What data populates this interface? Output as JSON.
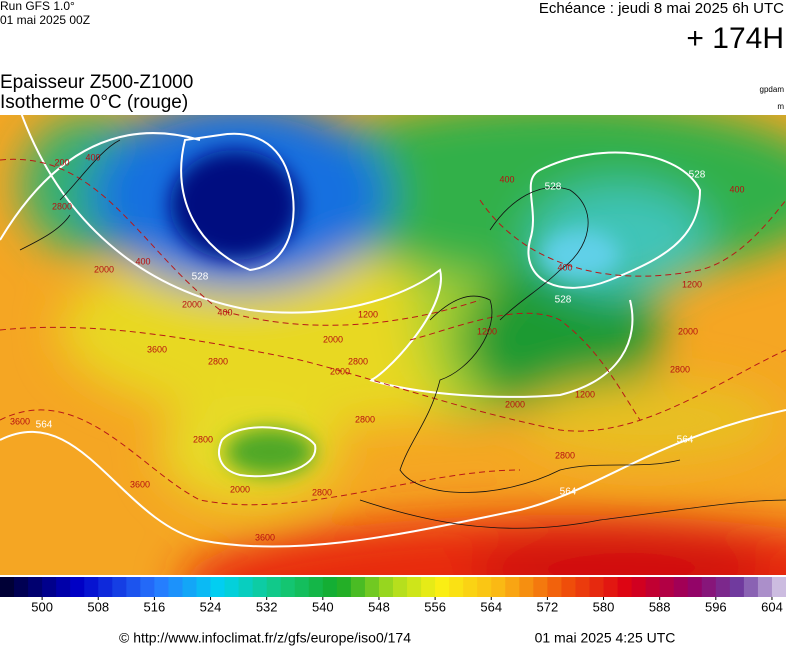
{
  "header": {
    "run": "Run GFS 1.0°",
    "run_date": "01 mai 2025 00Z",
    "echeance": "Echéance : jeudi 8 mai 2025 6h UTC",
    "lead": "+ 174H",
    "title_line1": "Epaisseur Z500-Z1000",
    "title_line2": "Isotherme 0°C (rouge)",
    "unit_thickness": "gpdam",
    "unit_isotherm": "m"
  },
  "map": {
    "thickness_labels": [
      528,
      528,
      528,
      528,
      564,
      564,
      564
    ],
    "isotherm_labels": [
      200,
      400,
      2800,
      2000,
      400,
      400,
      2000,
      1200,
      2000,
      2800,
      2000,
      3600,
      2800,
      3600,
      2800,
      2000,
      2800,
      3600,
      3600,
      2800,
      400,
      1200,
      2000,
      400,
      1200,
      2000,
      2800,
      2800,
      1200,
      400
    ]
  },
  "colorbar": {
    "lim": [
      494,
      606
    ],
    "ticks": [
      500,
      508,
      516,
      524,
      532,
      540,
      548,
      556,
      564,
      572,
      580,
      588,
      596,
      604
    ]
  },
  "footer": {
    "url": "© http://www.infoclimat.fr/z/gfs/europe/iso0/174",
    "timestamp": "01 mai 2025  4:25 UTC"
  }
}
